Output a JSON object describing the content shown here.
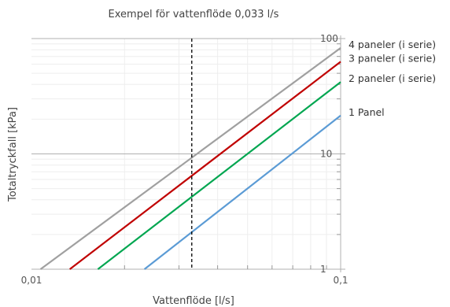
{
  "chart_data": {
    "type": "line",
    "title": "Exempel för vattenflöde 0,033 l/s",
    "xlabel": "Vattenflöde [l/s]",
    "ylabel": "Totaltryckfall [kPa]",
    "x_scale": "log",
    "y_scale": "log",
    "xlim": [
      0.01,
      0.1
    ],
    "ylim": [
      1,
      100
    ],
    "x_ticks": [
      {
        "value": 0.01,
        "label": "0,01"
      },
      {
        "value": 0.1,
        "label": "0,1"
      }
    ],
    "y_ticks": [
      {
        "value": 1,
        "label": "1"
      },
      {
        "value": 10,
        "label": "10"
      },
      {
        "value": 100,
        "label": "100"
      }
    ],
    "grid": true,
    "reference_line": {
      "x": 0.033,
      "style": "dashed",
      "color": "#000000"
    },
    "series": [
      {
        "name": "4 paneler (i serie)",
        "color": "#a0a0a0",
        "x": [
          0.0107,
          0.1
        ],
        "y": [
          1,
          83
        ]
      },
      {
        "name": "3 paneler (i serie)",
        "color": "#c00000",
        "x": [
          0.0133,
          0.1
        ],
        "y": [
          1,
          63
        ]
      },
      {
        "name": "2 paneler (i serie)",
        "color": "#00a650",
        "x": [
          0.0164,
          0.1
        ],
        "y": [
          1,
          42
        ]
      },
      {
        "name": "1 Panel",
        "color": "#5b9bd5",
        "x": [
          0.0232,
          0.1
        ],
        "y": [
          1,
          21.5
        ]
      }
    ]
  }
}
